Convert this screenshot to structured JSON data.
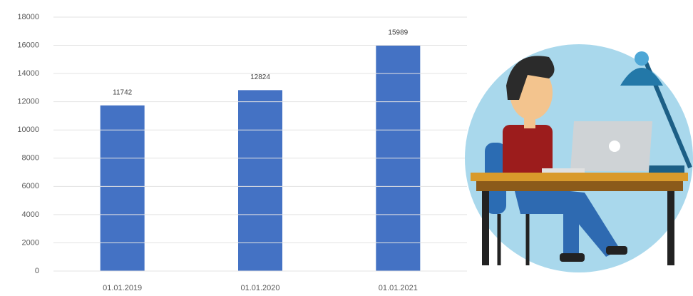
{
  "chart_data": {
    "type": "bar",
    "categories": [
      "01.01.2019",
      "01.01.2020",
      "01.01.2021"
    ],
    "values": [
      11742,
      12824,
      15989
    ],
    "color": "#4472c4",
    "ylim": [
      0,
      18000
    ],
    "yticks": [
      0,
      2000,
      4000,
      6000,
      8000,
      10000,
      12000,
      14000,
      16000,
      18000
    ],
    "grid": true
  }
}
